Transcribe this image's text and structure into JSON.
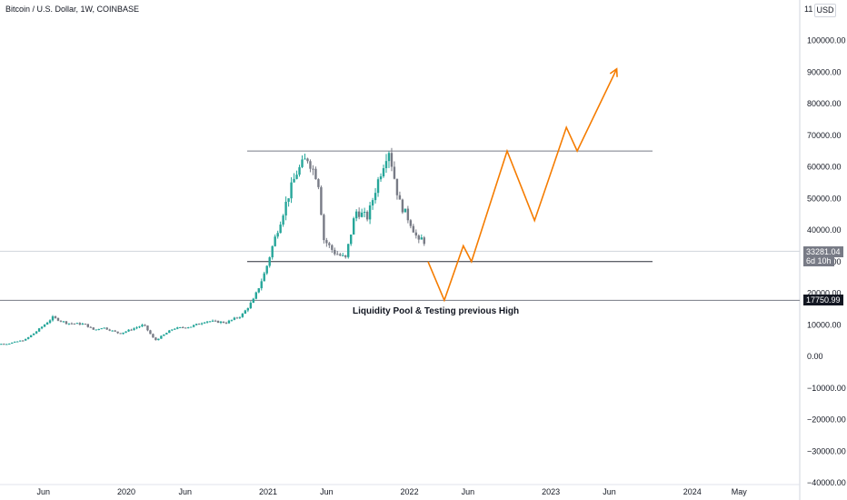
{
  "header": {
    "title": "Bitcoin / U.S. Dollar, 1W, COINBASE",
    "unit": "USD",
    "axis_top_fragment": "11"
  },
  "annotation": "Liquidity Pool & Testing previous High",
  "price_tags": {
    "current": "33281.04",
    "countdown": "6d 10h",
    "level": "17750.99"
  },
  "colors": {
    "up": "#26a69a",
    "down": "#787b86",
    "projection": "#f57c00",
    "level_line": "#787b86"
  },
  "chart_data": {
    "type": "line",
    "title": "Bitcoin / U.S. Dollar, 1W, COINBASE",
    "ylim": [
      -40000,
      112000
    ],
    "y_ticks": [
      100000,
      90000,
      80000,
      70000,
      60000,
      50000,
      40000,
      30000,
      20000,
      10000,
      0,
      -10000,
      -20000,
      -30000,
      -40000
    ],
    "y_tick_labels": [
      "100000.00",
      "90000.00",
      "80000.00",
      "70000.00",
      "60000.00",
      "50000.00",
      "40000.00",
      "30000.00",
      "20000.00",
      "10000.00",
      "0.00",
      "−10000.00",
      "−20000.00",
      "−30000.00",
      "−40000.00"
    ],
    "x_ticks": [
      {
        "label": "Jun",
        "date": "2019-06-01"
      },
      {
        "label": "2020",
        "date": "2020-01-01"
      },
      {
        "label": "Jun",
        "date": "2020-06-01"
      },
      {
        "label": "2021",
        "date": "2021-01-01"
      },
      {
        "label": "Jun",
        "date": "2021-06-01"
      },
      {
        "label": "2022",
        "date": "2022-01-01"
      },
      {
        "label": "Jun",
        "date": "2022-06-01"
      },
      {
        "label": "2023",
        "date": "2023-01-01"
      },
      {
        "label": "Jun",
        "date": "2023-06-01"
      },
      {
        "label": "2024",
        "date": "2024-01-01"
      },
      {
        "label": "May",
        "date": "2024-05-01"
      }
    ],
    "series": [
      {
        "values": [
          {
            "date": "2019-01-01",
            "close": 3800
          },
          {
            "date": "2019-03-01",
            "close": 4000
          },
          {
            "date": "2019-04-15",
            "close": 5300
          },
          {
            "date": "2019-05-15",
            "close": 8000
          },
          {
            "date": "2019-06-25",
            "close": 12300
          },
          {
            "date": "2019-08-01",
            "close": 10500
          },
          {
            "date": "2019-09-15",
            "close": 10200
          },
          {
            "date": "2019-10-10",
            "close": 8300
          },
          {
            "date": "2019-11-01",
            "close": 9200
          },
          {
            "date": "2019-12-15",
            "close": 7200
          },
          {
            "date": "2020-02-15",
            "close": 10000
          },
          {
            "date": "2020-03-15",
            "close": 5000
          },
          {
            "date": "2020-05-01",
            "close": 8800
          },
          {
            "date": "2020-06-15",
            "close": 9400
          },
          {
            "date": "2020-07-25",
            "close": 11200
          },
          {
            "date": "2020-09-15",
            "close": 10700
          },
          {
            "date": "2020-10-25",
            "close": 13000
          },
          {
            "date": "2020-11-25",
            "close": 18000
          },
          {
            "date": "2020-12-25",
            "close": 27000
          },
          {
            "date": "2021-01-15",
            "close": 36000
          },
          {
            "date": "2021-02-20",
            "close": 50000
          },
          {
            "date": "2021-03-15",
            "close": 58000
          },
          {
            "date": "2021-04-12",
            "close": 63000
          },
          {
            "date": "2021-05-10",
            "close": 56000
          },
          {
            "date": "2021-05-25",
            "close": 37000
          },
          {
            "date": "2021-06-20",
            "close": 33000
          },
          {
            "date": "2021-07-20",
            "close": 31000
          },
          {
            "date": "2021-08-15",
            "close": 46000
          },
          {
            "date": "2021-09-15",
            "close": 44000
          },
          {
            "date": "2021-10-10",
            "close": 55000
          },
          {
            "date": "2021-11-08",
            "close": 66000
          },
          {
            "date": "2021-12-05",
            "close": 49000
          },
          {
            "date": "2022-01-05",
            "close": 42000
          },
          {
            "date": "2022-01-25",
            "close": 36000
          },
          {
            "date": "2022-02-05",
            "close": 38000
          },
          {
            "date": "2022-02-14",
            "close": 33281
          }
        ]
      }
    ]
  },
  "levels": {
    "range_top": 65000,
    "range_bottom": 30000,
    "previous_high": 17750.99,
    "current": 33281.04
  },
  "projection_path": [
    {
      "date": "2022-02-18",
      "price": 30000
    },
    {
      "date": "2022-04-01",
      "price": 17750.99
    },
    {
      "date": "2022-05-20",
      "price": 35000
    },
    {
      "date": "2022-06-10",
      "price": 30000
    },
    {
      "date": "2022-09-10",
      "price": 65000
    },
    {
      "date": "2022-11-20",
      "price": 43000
    },
    {
      "date": "2023-02-10",
      "price": 72500
    },
    {
      "date": "2023-03-10",
      "price": 65000
    },
    {
      "date": "2023-06-20",
      "price": 91000
    }
  ]
}
